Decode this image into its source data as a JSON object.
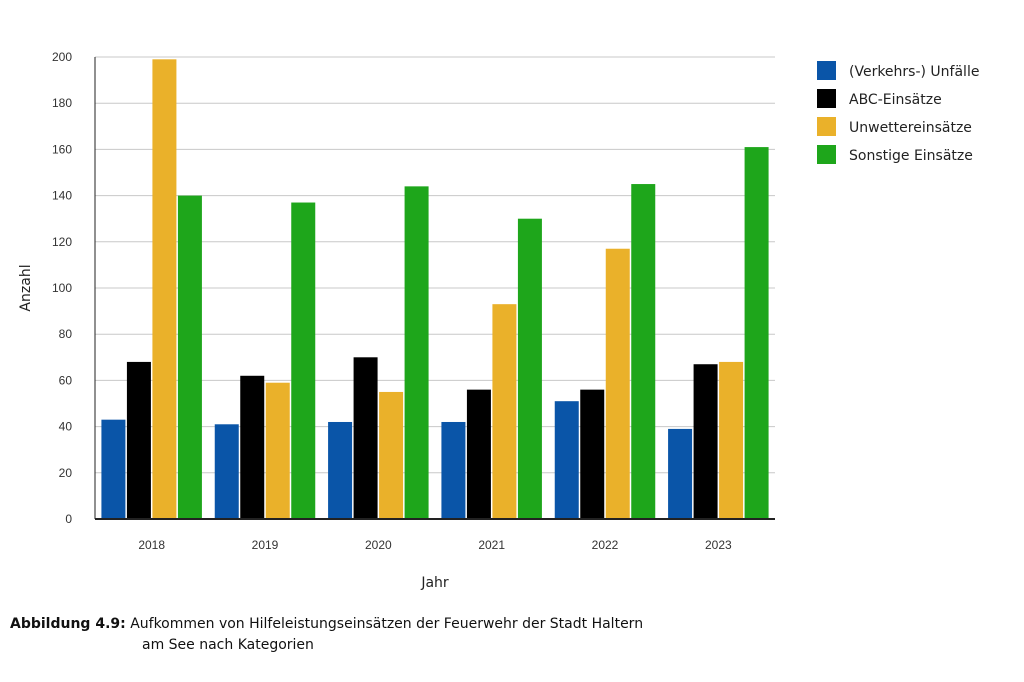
{
  "chart_data": {
    "type": "bar",
    "categories": [
      "2018",
      "2019",
      "2020",
      "2021",
      "2022",
      "2023"
    ],
    "series": [
      {
        "name": "(Verkehrs-) Unfälle",
        "color": "#0a55a8",
        "values": [
          43,
          41,
          42,
          42,
          51,
          39
        ]
      },
      {
        "name": "ABC-Einsätze",
        "color": "#000000",
        "values": [
          68,
          62,
          70,
          56,
          56,
          67
        ]
      },
      {
        "name": "Unwettereinsätze",
        "color": "#eab12a",
        "values": [
          199,
          59,
          55,
          93,
          117,
          68
        ]
      },
      {
        "name": "Sonstige Einsätze",
        "color": "#1ea61b",
        "values": [
          140,
          137,
          144,
          130,
          145,
          161
        ]
      }
    ],
    "xlabel": "Jahr",
    "ylabel": "Anzahl",
    "ylim": [
      0,
      200
    ],
    "yticks": [
      0,
      20,
      40,
      60,
      80,
      100,
      120,
      140,
      160,
      180,
      200
    ],
    "grid": true,
    "legend": "top-right"
  },
  "caption": {
    "label": "Abbildung 4.9:",
    "line1": "Aufkommen von Hilfeleistungseinsätzen der Feuerwehr der Stadt Haltern",
    "line2": "am See nach Kategorien"
  }
}
